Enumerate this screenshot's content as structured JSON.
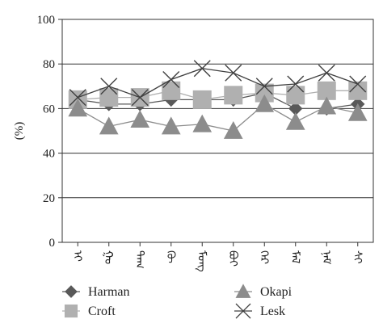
{
  "chart_data": {
    "type": "line",
    "title": "",
    "xlabel": "",
    "ylabel": "(%)",
    "ylim": [
      0,
      100
    ],
    "yticks": [
      0,
      20,
      40,
      60,
      80,
      100
    ],
    "grid": "horizontal",
    "legend_position": "bottom",
    "categories": [
      "ᠡᠢ",
      "ᠭᠣ",
      "ᠲᠠᠬ",
      "ᠬᠦ",
      "ᠮᠣᠩ",
      "ᠪᠤᠢ",
      "ᠭᠡᠷ",
      "ᠮᠠᠯ",
      "ᠨᠠᠮ",
      "ᠰᠢ"
    ],
    "series": [
      {
        "name": "Harman",
        "marker": "diamond",
        "color": "#595959",
        "values": [
          64,
          62,
          62,
          64,
          64,
          64,
          67,
          60,
          60,
          62
        ]
      },
      {
        "name": "Croft",
        "marker": "square",
        "color": "#b0b0b0",
        "values": [
          64,
          65,
          65,
          68,
          64,
          66,
          67,
          66,
          68,
          68
        ]
      },
      {
        "name": "Okapi",
        "marker": "triangle",
        "color": "#8c8c8c",
        "values": [
          60,
          52,
          55,
          52,
          53,
          50,
          62,
          54,
          61,
          58
        ]
      },
      {
        "name": "Lesk",
        "marker": "cross",
        "color": "#404040",
        "values": [
          65,
          70,
          65,
          73,
          78,
          76,
          70,
          71,
          76,
          71
        ]
      }
    ]
  }
}
